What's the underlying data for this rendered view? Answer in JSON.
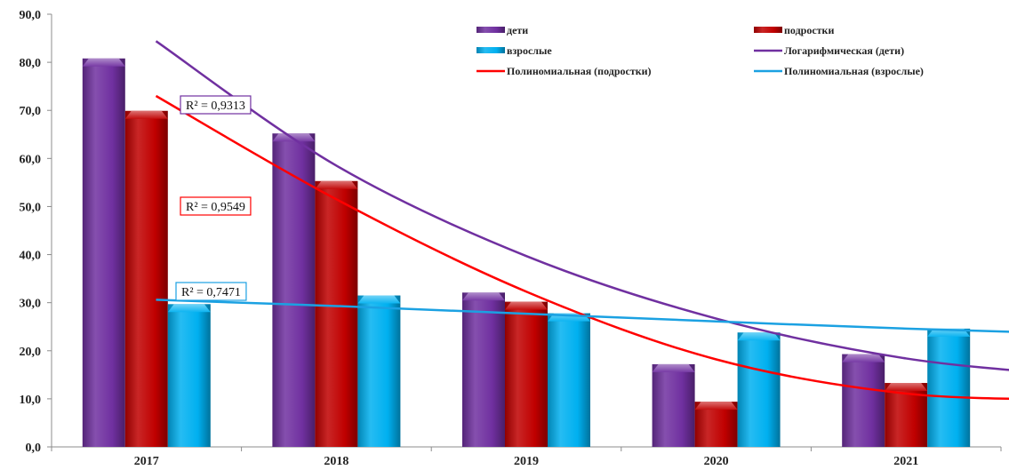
{
  "chart_data": {
    "type": "bar",
    "categories": [
      "2017",
      "2018",
      "2019",
      "2020",
      "2021"
    ],
    "series": [
      {
        "name": "дети",
        "values": [
          80.8,
          65.2,
          32.1,
          17.2,
          19.3
        ],
        "color": "#7030a0"
      },
      {
        "name": "подростки",
        "values": [
          69.9,
          55.3,
          30.2,
          9.4,
          13.3
        ],
        "color": "#c00000"
      },
      {
        "name": "взрослые",
        "values": [
          29.7,
          31.5,
          27.8,
          23.8,
          24.6
        ],
        "color": "#00b0f0"
      }
    ],
    "trendlines": [
      {
        "name": "Логарифмическая (дети)",
        "type": "logarithmic",
        "base_series": "дети",
        "color": "#7030a0",
        "r2_label": "R² = 0,9313",
        "x": [
          0.05,
          1,
          2,
          3,
          4,
          4.97
        ],
        "y": [
          84.4,
          58.5,
          39.7,
          26.7,
          18.4,
          14.6
        ]
      },
      {
        "name": "Полиномиальная (подростки)",
        "type": "polynomial",
        "base_series": "подростки",
        "color": "#ff0000",
        "r2_label": "R² = 0,9549",
        "x": [
          0.05,
          1,
          2,
          3,
          4,
          4.97
        ],
        "y": [
          73.0,
          51.5,
          32.3,
          18.2,
          11.1,
          9.8
        ]
      },
      {
        "name": "Полиномиальная (взрослые)",
        "type": "polynomial",
        "base_series": "взрослые",
        "color": "#1ba1e2",
        "r2_label": "R² = 0,7471",
        "x": [
          0.05,
          1,
          2,
          3,
          4,
          4.97
        ],
        "y": [
          30.6,
          29.3,
          27.7,
          26.1,
          24.6,
          23.5
        ]
      }
    ],
    "yticks": [
      "0,0",
      "10,0",
      "20,0",
      "30,0",
      "40,0",
      "50,0",
      "60,0",
      "70,0",
      "80,0",
      "90,0"
    ],
    "ylim": [
      0,
      90
    ],
    "title": "",
    "xlabel": "",
    "ylabel": "",
    "grid": false,
    "legend_position": "top-right"
  }
}
